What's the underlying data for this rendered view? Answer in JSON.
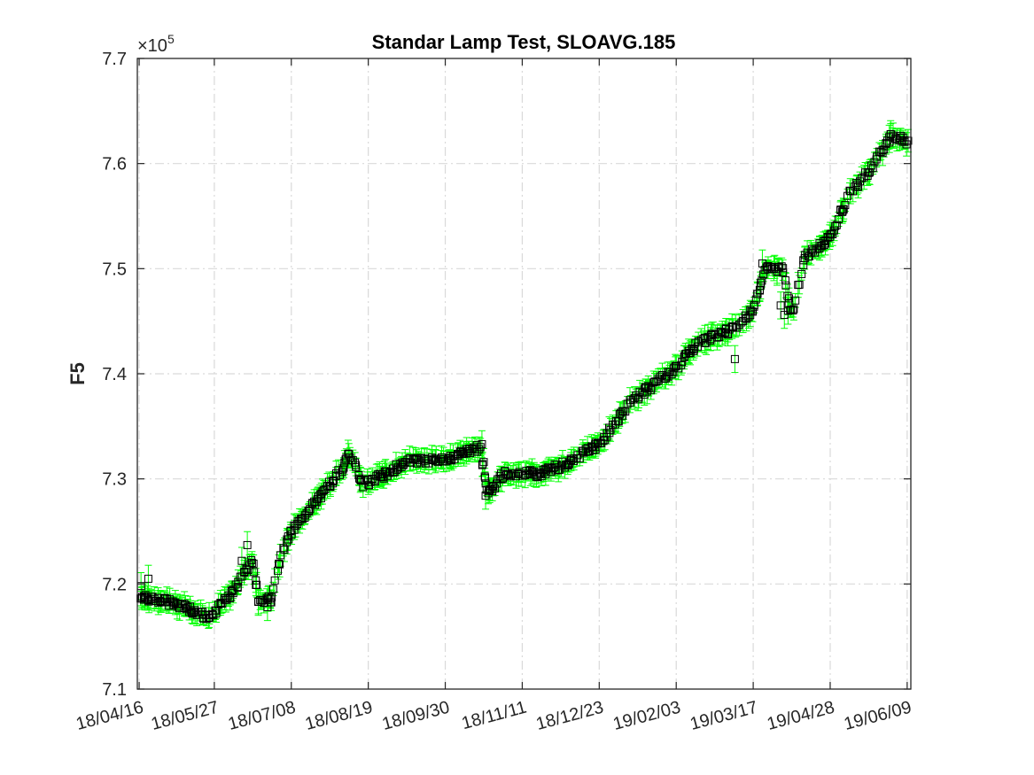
{
  "chart_data": {
    "type": "scatter",
    "title": "Standar Lamp Test, SLOAVG.185",
    "xlabel": "",
    "ylabel": "F5",
    "y_exponent_label": "×10",
    "y_exponent_power": "5",
    "ylim": [
      7.1,
      7.7
    ],
    "xlim": [
      "18/04/15",
      "19/06/11"
    ],
    "grid": true,
    "x_ticks": [
      "18/04/16",
      "18/05/27",
      "18/07/08",
      "18/08/19",
      "18/09/30",
      "18/11/11",
      "18/12/23",
      "19/02/03",
      "19/03/17",
      "19/04/28",
      "19/06/09"
    ],
    "y_ticks": [
      "7.1",
      "7.2",
      "7.3",
      "7.4",
      "7.5",
      "7.6",
      "7.7"
    ],
    "marker": "square",
    "marker_color": "#000000",
    "errorbar_color": "#00ff00",
    "error_magnitude": 0.008,
    "trend_knots": [
      {
        "date": "18/04/16",
        "y": 7.188
      },
      {
        "date": "18/04/23",
        "y": 7.185
      },
      {
        "date": "18/05/05",
        "y": 7.182
      },
      {
        "date": "18/05/14",
        "y": 7.175
      },
      {
        "date": "18/05/24",
        "y": 7.168
      },
      {
        "date": "18/06/05",
        "y": 7.19
      },
      {
        "date": "18/06/17",
        "y": 7.222
      },
      {
        "date": "18/06/20",
        "y": 7.185
      },
      {
        "date": "18/06/27",
        "y": 7.185
      },
      {
        "date": "18/07/02",
        "y": 7.225
      },
      {
        "date": "18/07/08",
        "y": 7.25
      },
      {
        "date": "18/07/22",
        "y": 7.28
      },
      {
        "date": "18/08/05",
        "y": 7.31
      },
      {
        "date": "18/08/09",
        "y": 7.323
      },
      {
        "date": "18/08/16",
        "y": 7.295
      },
      {
        "date": "18/08/26",
        "y": 7.302
      },
      {
        "date": "18/09/10",
        "y": 7.318
      },
      {
        "date": "18/09/30",
        "y": 7.318
      },
      {
        "date": "18/10/19",
        "y": 7.33
      },
      {
        "date": "18/10/23",
        "y": 7.285
      },
      {
        "date": "18/11/01",
        "y": 7.305
      },
      {
        "date": "18/11/20",
        "y": 7.305
      },
      {
        "date": "18/12/06",
        "y": 7.315
      },
      {
        "date": "18/12/23",
        "y": 7.333
      },
      {
        "date": "19/01/10",
        "y": 7.375
      },
      {
        "date": "19/02/03",
        "y": 7.405
      },
      {
        "date": "19/02/15",
        "y": 7.43
      },
      {
        "date": "19/03/05",
        "y": 7.442
      },
      {
        "date": "19/03/17",
        "y": 7.46
      },
      {
        "date": "19/03/24",
        "y": 7.5
      },
      {
        "date": "19/04/02",
        "y": 7.5
      },
      {
        "date": "19/04/07",
        "y": 7.455
      },
      {
        "date": "19/04/14",
        "y": 7.51
      },
      {
        "date": "19/04/28",
        "y": 7.53
      },
      {
        "date": "19/05/08",
        "y": 7.57
      },
      {
        "date": "19/05/20",
        "y": 7.595
      },
      {
        "date": "19/06/01",
        "y": 7.628
      },
      {
        "date": "19/06/09",
        "y": 7.62
      }
    ],
    "notable_points": [
      {
        "date": "18/04/17",
        "y": 7.198
      },
      {
        "date": "18/04/21",
        "y": 7.205
      },
      {
        "date": "18/06/11",
        "y": 7.222
      },
      {
        "date": "18/06/14",
        "y": 7.237
      },
      {
        "date": "18/06/20",
        "y": 7.183
      },
      {
        "date": "18/06/25",
        "y": 7.178
      },
      {
        "date": "18/08/08",
        "y": 7.324
      },
      {
        "date": "18/10/20",
        "y": 7.333
      },
      {
        "date": "18/10/21",
        "y": 7.316
      },
      {
        "date": "18/10/22",
        "y": 7.284
      },
      {
        "date": "19/03/07",
        "y": 7.414
      },
      {
        "date": "19/03/21",
        "y": 7.484
      },
      {
        "date": "19/03/22",
        "y": 7.505
      },
      {
        "date": "19/03/30",
        "y": 7.497
      },
      {
        "date": "19/04/01",
        "y": 7.465
      },
      {
        "date": "19/04/03",
        "y": 7.456
      },
      {
        "date": "19/04/05",
        "y": 7.46
      },
      {
        "date": "19/05/31",
        "y": 7.628
      }
    ]
  }
}
